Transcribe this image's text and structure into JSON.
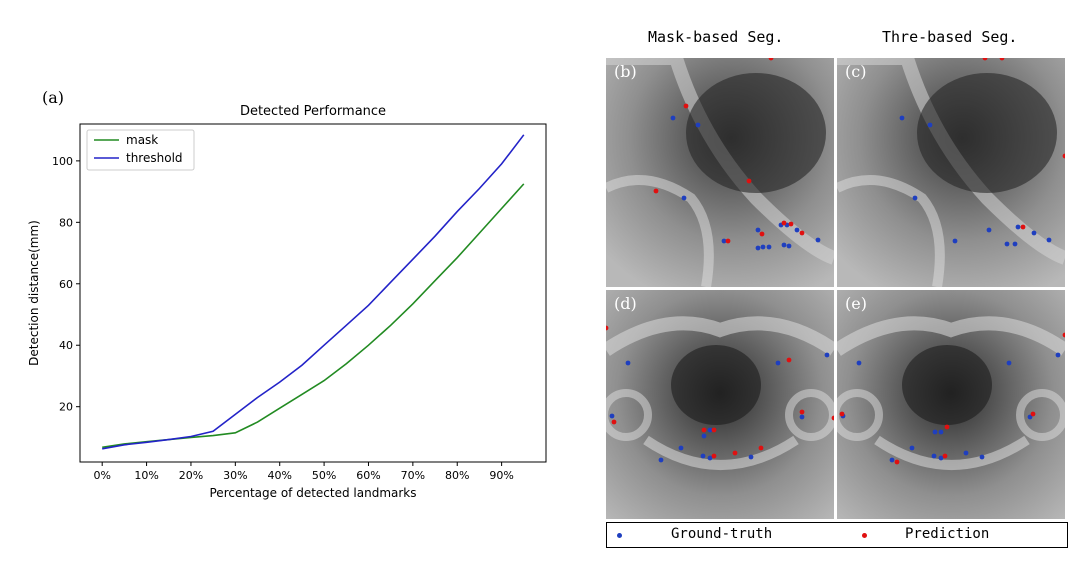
{
  "panel_a_label": "(a)",
  "chart_data": {
    "type": "line",
    "title": "Detected Performance",
    "xlabel": "Percentage of detected landmarks",
    "ylabel": "Detection distance(mm)",
    "x": [
      0,
      5,
      10,
      15,
      20,
      25,
      30,
      35,
      40,
      45,
      50,
      55,
      60,
      65,
      70,
      75,
      80,
      85,
      90,
      95
    ],
    "x_ticks": [
      "0%",
      "10%",
      "20%",
      "30%",
      "40%",
      "50%",
      "60%",
      "70%",
      "80%",
      "90%"
    ],
    "x_tick_values": [
      0,
      10,
      20,
      30,
      40,
      50,
      60,
      70,
      80,
      90
    ],
    "y_ticks": [
      20,
      40,
      60,
      80,
      100
    ],
    "xlim": [
      -5,
      100
    ],
    "ylim": [
      2,
      112
    ],
    "legend_position": "top-left",
    "grid": false,
    "series": [
      {
        "name": "mask",
        "color": "#228b22",
        "values": [
          6.8,
          7.9,
          8.6,
          9.3,
          10.0,
          10.6,
          11.5,
          15.0,
          19.5,
          24.0,
          28.5,
          34.0,
          40.0,
          46.5,
          53.5,
          61.0,
          68.5,
          76.5,
          84.5,
          92.5
        ]
      },
      {
        "name": "threshold",
        "color": "#2323c8",
        "values": [
          6.3,
          7.6,
          8.4,
          9.3,
          10.3,
          12.0,
          17.5,
          23.0,
          28.0,
          33.5,
          40.0,
          46.5,
          53.0,
          60.5,
          68.0,
          75.5,
          83.5,
          91.0,
          99.0,
          108.5
        ]
      }
    ]
  },
  "images": {
    "col_titles": [
      "Mask-based Seg.",
      "Thre-based Seg."
    ],
    "panels": [
      {
        "label": "(b)"
      },
      {
        "label": "(c)"
      },
      {
        "label": "(d)"
      },
      {
        "label": "(e)"
      }
    ],
    "legend": {
      "ground_truth": {
        "label": "Ground-truth",
        "color": "#1f3fbf"
      },
      "prediction": {
        "label": "Prediction",
        "color": "#e01010"
      }
    }
  }
}
